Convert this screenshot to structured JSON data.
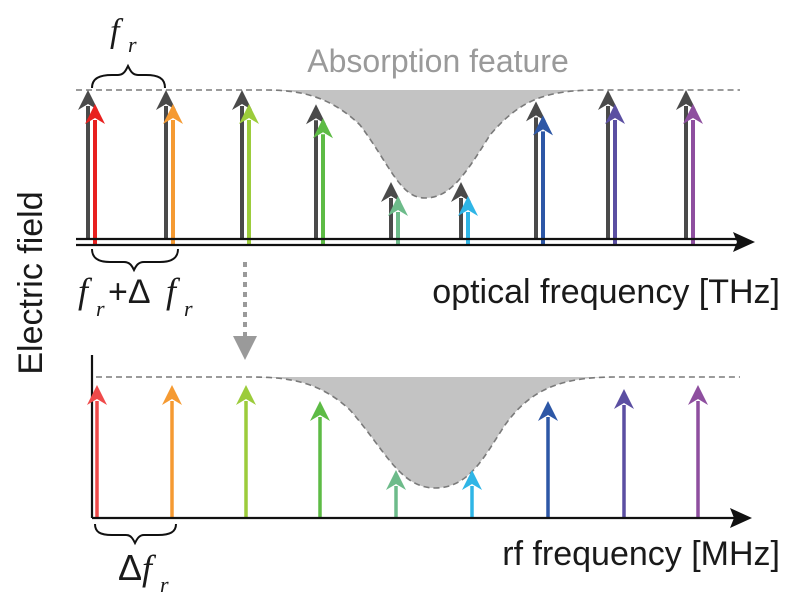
{
  "labels": {
    "absorption": "Absorption feature",
    "y_axis": "Electric field",
    "optical_axis": "optical frequency [THz]",
    "rf_axis": "rf frequency [MHz]",
    "fr_main": "f",
    "fr_sub": "r",
    "fr_plus_main": "f",
    "fr_plus_sub": "r",
    "plus_delta": "+Δ",
    "fr_plus_f": "f",
    "fr_plus_f_sub": "r",
    "delta_main": "Δ",
    "delta_f": "f",
    "delta_sub": "r"
  },
  "colors": {
    "line_gray": "#8a8a8a",
    "dash_gray": "#7a7a7a",
    "fill_gray": "#bdbdbd",
    "axis": "#111111",
    "dark_arrow": "#4a4a4a",
    "transfer_arrow": "#9a9a9a",
    "text_gray": "#9a9a9a",
    "text_dark": "#1a1a1a"
  },
  "optical_comb": [
    {
      "color": "#e8201f",
      "amp": 1.0
    },
    {
      "color": "#f59a32",
      "amp": 1.0
    },
    {
      "color": "#9ccc3b",
      "amp": 1.0
    },
    {
      "color": "#5dbb45",
      "amp": 0.9
    },
    {
      "color": "#6dbb8a",
      "amp": 0.3
    },
    {
      "color": "#2fb5e6",
      "amp": 0.3
    },
    {
      "color": "#2d57a6",
      "amp": 0.92
    },
    {
      "color": "#5b4fa2",
      "amp": 1.0
    },
    {
      "color": "#8e4f9f",
      "amp": 1.0
    }
  ],
  "rf_comb": [
    {
      "color": "#ef4a4a",
      "amp": 1.0
    },
    {
      "color": "#f59a32",
      "amp": 1.0
    },
    {
      "color": "#9ccc3b",
      "amp": 1.0
    },
    {
      "color": "#5dbb45",
      "amp": 0.88
    },
    {
      "color": "#6dbb8a",
      "amp": 0.27
    },
    {
      "color": "#2fb5e6",
      "amp": 0.27
    },
    {
      "color": "#2d57a6",
      "amp": 0.88
    },
    {
      "color": "#5b4fa2",
      "amp": 0.97
    },
    {
      "color": "#8e4f9f",
      "amp": 1.0
    }
  ]
}
